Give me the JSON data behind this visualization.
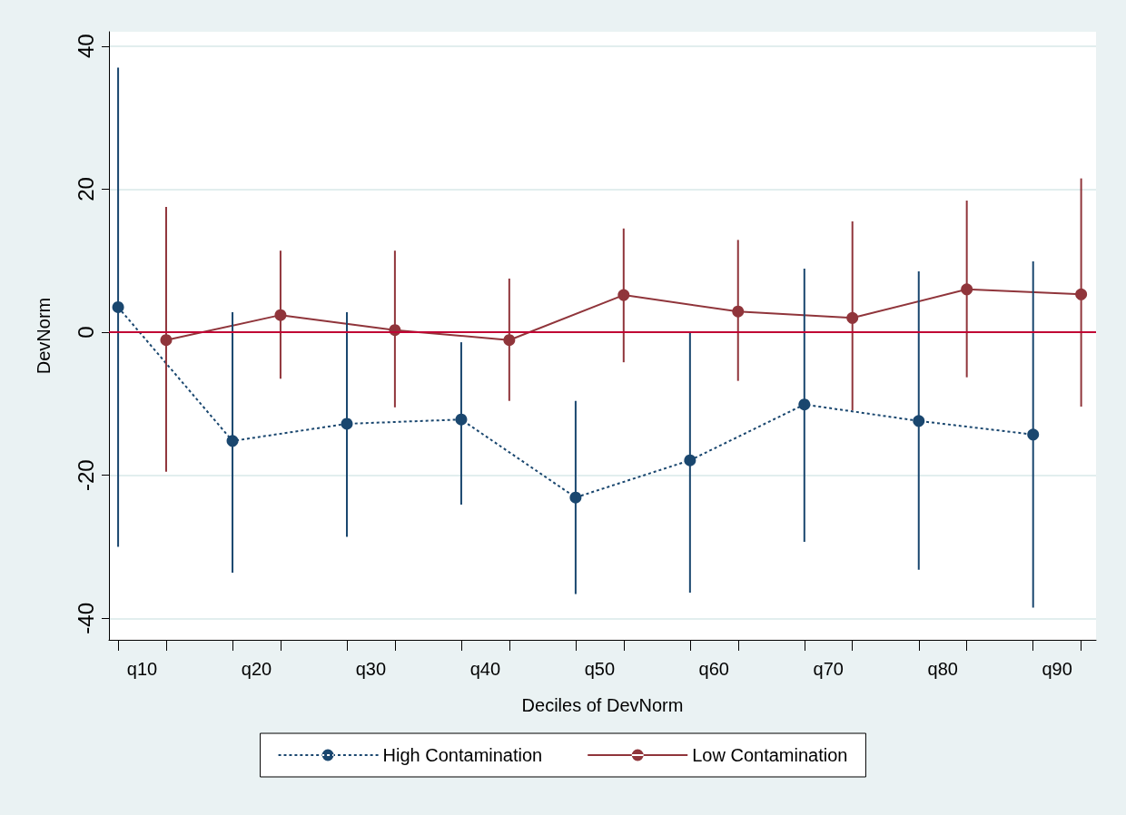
{
  "chart_data": {
    "type": "line",
    "xlabel": "Deciles of DevNorm",
    "ylabel": "DevNorm",
    "categories": [
      "q10",
      "q20",
      "q30",
      "q40",
      "q50",
      "q60",
      "q70",
      "q80",
      "q90"
    ],
    "series": [
      {
        "name": "High Contamination",
        "color": "#1a476f",
        "line_style": "dashed",
        "values": [
          3.5,
          -15.2,
          -12.8,
          -12.2,
          -23.1,
          -17.9,
          -10.1,
          -12.4,
          -14.3
        ],
        "errors": [
          [
            -30,
            37
          ],
          [
            -33.6,
            2.8
          ],
          [
            -28.6,
            2.8
          ],
          [
            -24.1,
            -1.4
          ],
          [
            -36.6,
            -9.6
          ],
          [
            -36.4,
            0.1
          ],
          [
            -29.3,
            8.9
          ],
          [
            -33.2,
            8.5
          ],
          [
            -38.5,
            9.9
          ]
        ]
      },
      {
        "name": "Low Contamination",
        "color": "#90353b",
        "line_style": "solid",
        "values": [
          -1.1,
          2.4,
          0.3,
          -1.1,
          5.2,
          2.9,
          2.0,
          6.0,
          5.3
        ],
        "errors": [
          [
            -19.5,
            17.5
          ],
          [
            -6.5,
            11.4
          ],
          [
            -10.5,
            11.4
          ],
          [
            -9.6,
            7.5
          ],
          [
            -4.2,
            14.5
          ],
          [
            -6.8,
            12.9
          ],
          [
            -10.9,
            15.5
          ],
          [
            -6.3,
            18.4
          ],
          [
            -10.4,
            21.5
          ]
        ]
      }
    ],
    "ylim": [
      -43,
      42
    ],
    "yticks": [
      -40,
      -20,
      0,
      20,
      40
    ],
    "grid": "y",
    "legend": "bottom",
    "marker": "circle",
    "ref_lines": [
      {
        "axis": "y",
        "value": 0,
        "color": "#c10534"
      }
    ]
  }
}
